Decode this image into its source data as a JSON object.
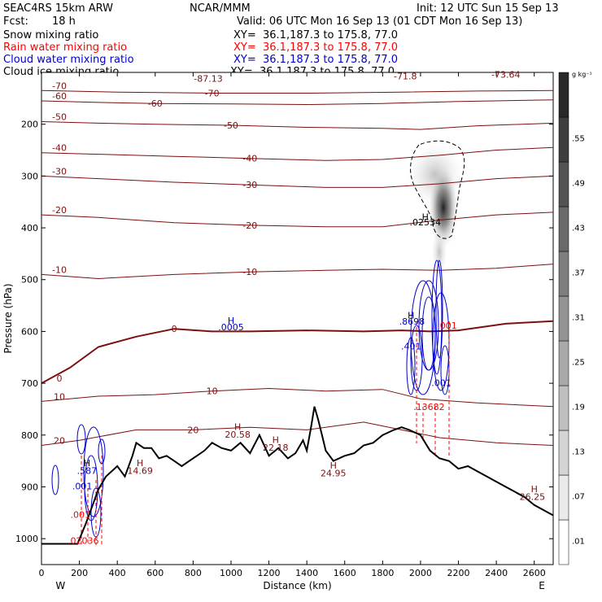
{
  "header": {
    "model": "SEAC4RS 15km ARW",
    "org": "NCAR/MMM",
    "init": "Init: 12 UTC Sun 15 Sep 13",
    "fcst_label": "Fcst:",
    "fcst_value": "18 h",
    "valid": "Valid: 06 UTC Mon 16 Sep 13 (01 CDT Mon 16 Sep 13)",
    "fields": [
      {
        "name": "Snow mixing ratio",
        "xy": "XY=  36.1,187.3 to 175.8, 77.0",
        "color": "#000000"
      },
      {
        "name": "Rain water mixing ratio",
        "xy": "XY=  36.1,187.3 to 175.8, 77.0",
        "color": "#ff0000"
      },
      {
        "name": "Cloud water mixing ratio",
        "xy": "XY=  36.1,187.3 to 175.8, 77.0",
        "color": "#0000cc"
      },
      {
        "name": "Cloud ice mixing ratio",
        "xy": "XY=  36.1,187.3 to 175.8, 77.0",
        "color": "#000000"
      }
    ]
  },
  "chart_data": {
    "type": "contour",
    "xlabel": "Distance (km)",
    "ylabel": "Pressure (hPa)",
    "xlim": [
      0,
      2700
    ],
    "ylim": [
      1050,
      100
    ],
    "x_ticks": [
      0,
      200,
      400,
      600,
      800,
      1000,
      1200,
      1400,
      1600,
      1800,
      2000,
      2200,
      2400,
      2600
    ],
    "y_ticks": [
      200,
      300,
      400,
      500,
      600,
      700,
      800,
      900,
      1000
    ],
    "direction_labels": {
      "left": "W",
      "right": "E"
    },
    "colorbar": {
      "unit": "g kg⁻¹",
      "levels": [
        0.01,
        0.07,
        0.13,
        0.19,
        0.25,
        0.31,
        0.37,
        0.43,
        0.49,
        0.55
      ],
      "labels": [
        ".01",
        ".07",
        ".13",
        ".19",
        ".25",
        ".31",
        ".37",
        ".43",
        ".49",
        ".55"
      ]
    },
    "temperature_isotherms": [
      {
        "value": -70,
        "label": "-70",
        "points": [
          [
            0,
            135
          ],
          [
            400,
            138
          ],
          [
            900,
            140
          ],
          [
            1400,
            140
          ],
          [
            1900,
            138
          ],
          [
            2300,
            136
          ],
          [
            2700,
            135
          ]
        ]
      },
      {
        "value": -60,
        "label": "-60",
        "points": [
          [
            0,
            155
          ],
          [
            300,
            158
          ],
          [
            600,
            160
          ],
          [
            1000,
            161
          ],
          [
            1400,
            162
          ],
          [
            1800,
            160
          ],
          [
            2200,
            156
          ],
          [
            2700,
            153
          ]
        ]
      },
      {
        "value": -50,
        "label": "-50",
        "points": [
          [
            0,
            195
          ],
          [
            300,
            198
          ],
          [
            600,
            200
          ],
          [
            1000,
            202
          ],
          [
            1400,
            206
          ],
          [
            1800,
            208
          ],
          [
            2000,
            210
          ],
          [
            2300,
            203
          ],
          [
            2700,
            198
          ]
        ]
      },
      {
        "value": -40,
        "label": "-40",
        "points": [
          [
            0,
            255
          ],
          [
            300,
            258
          ],
          [
            700,
            262
          ],
          [
            1100,
            266
          ],
          [
            1500,
            270
          ],
          [
            1800,
            268
          ],
          [
            2100,
            260
          ],
          [
            2400,
            250
          ],
          [
            2700,
            245
          ]
        ]
      },
      {
        "value": -30,
        "label": "-30",
        "points": [
          [
            0,
            300
          ],
          [
            300,
            305
          ],
          [
            700,
            312
          ],
          [
            1100,
            317
          ],
          [
            1500,
            322
          ],
          [
            1800,
            322
          ],
          [
            2100,
            315
          ],
          [
            2400,
            305
          ],
          [
            2700,
            300
          ]
        ]
      },
      {
        "value": -20,
        "label": "-20",
        "points": [
          [
            0,
            375
          ],
          [
            300,
            380
          ],
          [
            700,
            390
          ],
          [
            1100,
            395
          ],
          [
            1500,
            398
          ],
          [
            1800,
            398
          ],
          [
            2100,
            385
          ],
          [
            2400,
            375
          ],
          [
            2700,
            370
          ]
        ]
      },
      {
        "value": -10,
        "label": "-10",
        "points": [
          [
            0,
            490
          ],
          [
            300,
            498
          ],
          [
            700,
            490
          ],
          [
            1100,
            485
          ],
          [
            1500,
            482
          ],
          [
            1800,
            480
          ],
          [
            2100,
            482
          ],
          [
            2400,
            478
          ],
          [
            2700,
            470
          ]
        ]
      },
      {
        "value": 0,
        "label": "0",
        "points": [
          [
            0,
            700
          ],
          [
            150,
            670
          ],
          [
            300,
            630
          ],
          [
            500,
            610
          ],
          [
            700,
            595
          ],
          [
            900,
            600
          ],
          [
            1100,
            600
          ],
          [
            1400,
            598
          ],
          [
            1700,
            600
          ],
          [
            1900,
            598
          ],
          [
            2050,
            600
          ],
          [
            2200,
            598
          ],
          [
            2450,
            585
          ],
          [
            2700,
            580
          ]
        ]
      },
      {
        "value": 10,
        "label": "10",
        "points": [
          [
            0,
            735
          ],
          [
            300,
            725
          ],
          [
            600,
            722
          ],
          [
            900,
            715
          ],
          [
            1200,
            710
          ],
          [
            1500,
            715
          ],
          [
            1800,
            712
          ],
          [
            2000,
            730
          ],
          [
            2300,
            738
          ],
          [
            2700,
            745
          ]
        ]
      },
      {
        "value": 20,
        "label": "20",
        "points": [
          [
            0,
            820
          ],
          [
            200,
            810
          ],
          [
            500,
            790
          ],
          [
            800,
            790
          ],
          [
            1100,
            785
          ],
          [
            1400,
            790
          ],
          [
            1700,
            775
          ],
          [
            1900,
            790
          ],
          [
            2100,
            805
          ],
          [
            2400,
            815
          ],
          [
            2700,
            820
          ]
        ]
      }
    ],
    "ground_profile": [
      [
        0,
        1010
      ],
      [
        80,
        1010
      ],
      [
        190,
        1010
      ],
      [
        235,
        970
      ],
      [
        270,
        935
      ],
      [
        300,
        905
      ],
      [
        340,
        880
      ],
      [
        400,
        860
      ],
      [
        440,
        880
      ],
      [
        480,
        840
      ],
      [
        500,
        815
      ],
      [
        540,
        825
      ],
      [
        580,
        825
      ],
      [
        620,
        845
      ],
      [
        660,
        840
      ],
      [
        700,
        850
      ],
      [
        740,
        860
      ],
      [
        780,
        850
      ],
      [
        820,
        840
      ],
      [
        860,
        830
      ],
      [
        900,
        815
      ],
      [
        950,
        825
      ],
      [
        1000,
        830
      ],
      [
        1050,
        815
      ],
      [
        1100,
        835
      ],
      [
        1150,
        800
      ],
      [
        1200,
        840
      ],
      [
        1250,
        825
      ],
      [
        1300,
        845
      ],
      [
        1340,
        835
      ],
      [
        1380,
        810
      ],
      [
        1400,
        830
      ],
      [
        1420,
        790
      ],
      [
        1440,
        745
      ],
      [
        1460,
        770
      ],
      [
        1480,
        800
      ],
      [
        1500,
        830
      ],
      [
        1540,
        850
      ],
      [
        1600,
        840
      ],
      [
        1650,
        835
      ],
      [
        1700,
        820
      ],
      [
        1750,
        815
      ],
      [
        1800,
        800
      ],
      [
        1860,
        790
      ],
      [
        1900,
        785
      ],
      [
        1940,
        790
      ],
      [
        2000,
        800
      ],
      [
        2050,
        830
      ],
      [
        2100,
        845
      ],
      [
        2150,
        850
      ],
      [
        2200,
        865
      ],
      [
        2250,
        860
      ],
      [
        2300,
        870
      ],
      [
        2350,
        880
      ],
      [
        2400,
        890
      ],
      [
        2450,
        900
      ],
      [
        2500,
        910
      ],
      [
        2550,
        920
      ],
      [
        2600,
        935
      ],
      [
        2650,
        945
      ],
      [
        2700,
        955
      ]
    ],
    "annotations": [
      {
        "label": "H",
        "x": 1000,
        "y": 585,
        "color": "#0000cc"
      },
      {
        "label": ".0005",
        "x": 1000,
        "y": 598,
        "color": "#0000cc"
      },
      {
        "label": "H",
        "x": 2025,
        "y": 385,
        "color": "#000000"
      },
      {
        "label": ".02534",
        "x": 2025,
        "y": 395,
        "color": "#000000"
      },
      {
        "label": "H",
        "x": 1035,
        "y": 790,
        "color": "#7a1010"
      },
      {
        "label": "20.58",
        "x": 1035,
        "y": 805,
        "color": "#7a1010"
      },
      {
        "label": "H",
        "x": 1235,
        "y": 815,
        "color": "#7a1010"
      },
      {
        "label": "22.18",
        "x": 1235,
        "y": 830,
        "color": "#7a1010"
      },
      {
        "label": "H",
        "x": 520,
        "y": 860,
        "color": "#7a1010"
      },
      {
        "label": "14.69",
        "x": 520,
        "y": 875,
        "color": "#7a1010"
      },
      {
        "label": "H",
        "x": 1540,
        "y": 865,
        "color": "#7a1010"
      },
      {
        "label": "24.95",
        "x": 1540,
        "y": 880,
        "color": "#7a1010"
      },
      {
        "label": "H",
        "x": 2600,
        "y": 910,
        "color": "#7a1010"
      },
      {
        "label": "26.25",
        "x": 2590,
        "y": 925,
        "color": "#7a1010"
      },
      {
        "label": "H",
        "x": 1950,
        "y": 575,
        "color": "#000000"
      },
      {
        "label": ".8698",
        "x": 1955,
        "y": 587,
        "color": "#0000cc"
      },
      {
        "label": ".401",
        "x": 1950,
        "y": 635,
        "color": "#0000cc"
      },
      {
        "label": ".001",
        "x": 2110,
        "y": 705,
        "color": "#0000cc"
      },
      {
        "label": ".001",
        "x": 2140,
        "y": 595,
        "color": "#ff0000"
      },
      {
        "label": ".13682",
        "x": 2045,
        "y": 752,
        "color": "#ff0000"
      },
      {
        "label": "H",
        "x": 240,
        "y": 860,
        "color": "#000000"
      },
      {
        "label": ".587",
        "x": 240,
        "y": 875,
        "color": "#0000cc"
      },
      {
        "label": ".001",
        "x": 215,
        "y": 905,
        "color": "#0000cc"
      },
      {
        "label": ".001",
        "x": 205,
        "y": 960,
        "color": "#ff0000"
      },
      {
        "label": ".02036",
        "x": 220,
        "y": 1010,
        "color": "#ff0000"
      },
      {
        "label": "-87.13",
        "x": 880,
        "y": 118,
        "color": "#7a1010"
      },
      {
        "label": "-71.8",
        "x": 1920,
        "y": 113,
        "color": "#7a1010"
      },
      {
        "label": "-73.64",
        "x": 2450,
        "y": 110,
        "color": "#7a1010"
      }
    ]
  }
}
